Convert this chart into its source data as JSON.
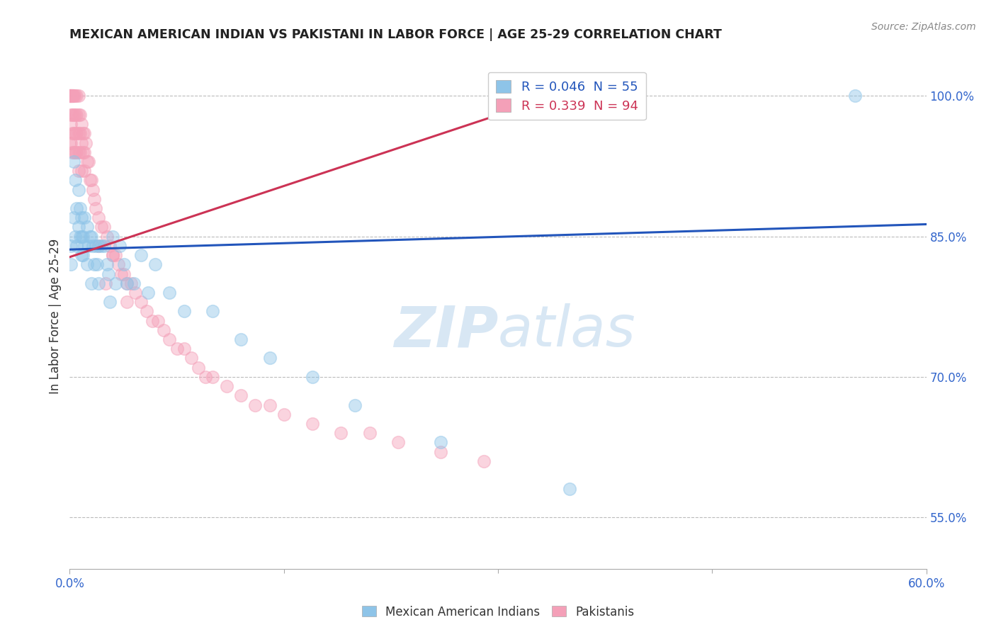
{
  "title": "MEXICAN AMERICAN INDIAN VS PAKISTANI IN LABOR FORCE | AGE 25-29 CORRELATION CHART",
  "source": "Source: ZipAtlas.com",
  "ylabel": "In Labor Force | Age 25-29",
  "xlim": [
    0.0,
    0.6
  ],
  "ylim": [
    0.495,
    1.035
  ],
  "blue_R": 0.046,
  "blue_N": 55,
  "pink_R": 0.339,
  "pink_N": 94,
  "blue_color": "#8ec4e8",
  "pink_color": "#f4a0b8",
  "blue_line_color": "#2255bb",
  "pink_line_color": "#cc3355",
  "background_color": "#ffffff",
  "grid_color": "#bbbbbb",
  "watermark_zip": "ZIP",
  "watermark_atlas": "atlas",
  "legend_label_blue": "Mexican American Indians",
  "legend_label_pink": "Pakistanis",
  "blue_scatter_x": [
    0.001,
    0.001,
    0.003,
    0.003,
    0.004,
    0.004,
    0.005,
    0.005,
    0.006,
    0.006,
    0.007,
    0.007,
    0.008,
    0.008,
    0.008,
    0.009,
    0.009,
    0.01,
    0.01,
    0.012,
    0.012,
    0.013,
    0.014,
    0.015,
    0.015,
    0.016,
    0.017,
    0.018,
    0.019,
    0.02,
    0.02,
    0.022,
    0.024,
    0.026,
    0.027,
    0.028,
    0.03,
    0.032,
    0.035,
    0.038,
    0.04,
    0.045,
    0.05,
    0.055,
    0.06,
    0.07,
    0.08,
    0.1,
    0.12,
    0.14,
    0.17,
    0.2,
    0.26,
    0.35,
    0.55
  ],
  "blue_scatter_y": [
    0.84,
    0.82,
    0.93,
    0.87,
    0.91,
    0.85,
    0.88,
    0.84,
    0.9,
    0.86,
    0.88,
    0.85,
    0.87,
    0.85,
    0.83,
    0.85,
    0.83,
    0.87,
    0.84,
    0.86,
    0.82,
    0.84,
    0.85,
    0.85,
    0.8,
    0.84,
    0.82,
    0.84,
    0.82,
    0.84,
    0.8,
    0.84,
    0.84,
    0.82,
    0.81,
    0.78,
    0.85,
    0.8,
    0.84,
    0.82,
    0.8,
    0.8,
    0.83,
    0.79,
    0.82,
    0.79,
    0.77,
    0.77,
    0.74,
    0.72,
    0.7,
    0.67,
    0.63,
    0.58,
    1.0
  ],
  "pink_scatter_x": [
    0.0,
    0.0,
    0.0,
    0.0,
    0.001,
    0.001,
    0.001,
    0.001,
    0.001,
    0.001,
    0.001,
    0.002,
    0.002,
    0.002,
    0.002,
    0.002,
    0.002,
    0.003,
    0.003,
    0.003,
    0.003,
    0.003,
    0.004,
    0.004,
    0.004,
    0.004,
    0.005,
    0.005,
    0.005,
    0.005,
    0.006,
    0.006,
    0.006,
    0.006,
    0.006,
    0.007,
    0.007,
    0.007,
    0.008,
    0.008,
    0.008,
    0.009,
    0.009,
    0.01,
    0.01,
    0.01,
    0.011,
    0.012,
    0.013,
    0.014,
    0.015,
    0.016,
    0.017,
    0.018,
    0.02,
    0.022,
    0.024,
    0.026,
    0.028,
    0.03,
    0.032,
    0.034,
    0.036,
    0.038,
    0.04,
    0.043,
    0.046,
    0.05,
    0.054,
    0.058,
    0.062,
    0.066,
    0.07,
    0.075,
    0.08,
    0.085,
    0.09,
    0.095,
    0.1,
    0.11,
    0.12,
    0.13,
    0.14,
    0.15,
    0.17,
    0.19,
    0.21,
    0.23,
    0.26,
    0.29,
    0.02,
    0.03,
    0.025,
    0.04
  ],
  "pink_scatter_y": [
    1.0,
    1.0,
    1.0,
    0.95,
    1.0,
    1.0,
    1.0,
    1.0,
    0.98,
    0.97,
    0.95,
    1.0,
    1.0,
    1.0,
    0.98,
    0.96,
    0.94,
    1.0,
    1.0,
    0.98,
    0.96,
    0.94,
    1.0,
    0.98,
    0.96,
    0.94,
    1.0,
    0.98,
    0.96,
    0.94,
    1.0,
    0.98,
    0.96,
    0.94,
    0.92,
    0.98,
    0.96,
    0.94,
    0.97,
    0.95,
    0.92,
    0.96,
    0.94,
    0.96,
    0.94,
    0.92,
    0.95,
    0.93,
    0.93,
    0.91,
    0.91,
    0.9,
    0.89,
    0.88,
    0.87,
    0.86,
    0.86,
    0.85,
    0.84,
    0.83,
    0.83,
    0.82,
    0.81,
    0.81,
    0.8,
    0.8,
    0.79,
    0.78,
    0.77,
    0.76,
    0.76,
    0.75,
    0.74,
    0.73,
    0.73,
    0.72,
    0.71,
    0.7,
    0.7,
    0.69,
    0.68,
    0.67,
    0.67,
    0.66,
    0.65,
    0.64,
    0.64,
    0.63,
    0.62,
    0.61,
    0.84,
    0.83,
    0.8,
    0.78
  ],
  "blue_trendline_x": [
    0.0,
    0.6
  ],
  "blue_trendline_y": [
    0.836,
    0.863
  ],
  "pink_trendline_x": [
    0.0,
    0.35
  ],
  "pink_trendline_y": [
    0.828,
    1.005
  ],
  "yticks": [
    1.0,
    0.85,
    0.7,
    0.55
  ],
  "ytick_labels": [
    "100.0%",
    "85.0%",
    "70.0%",
    "55.0%"
  ],
  "xtick_labels_left": [
    "0.0%"
  ],
  "xtick_labels_right": [
    "60.0%"
  ]
}
